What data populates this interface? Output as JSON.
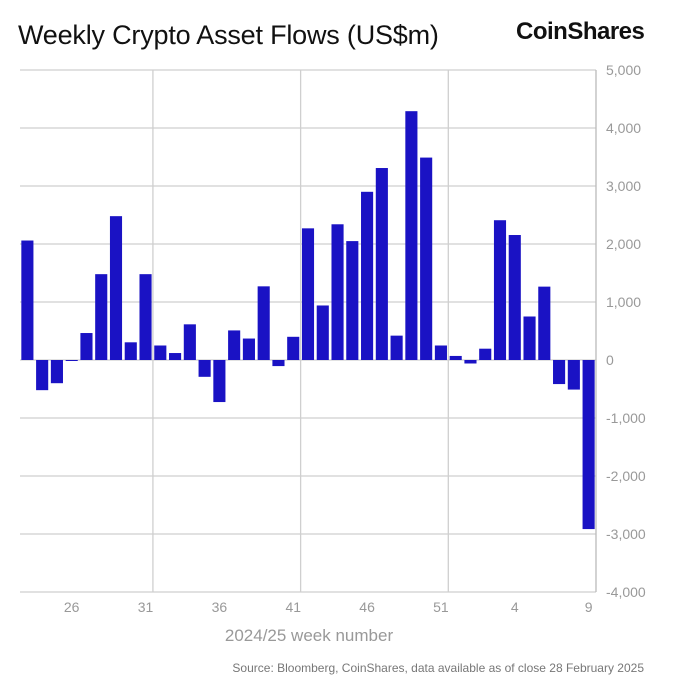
{
  "header": {
    "title": "Weekly Crypto Asset Flows (US$m)",
    "logo": "CoinShares"
  },
  "footer": {
    "source": "Source: Bloomberg, CoinShares, data available as of close 28 February 2025"
  },
  "chart_data": {
    "type": "bar",
    "title": "Weekly Crypto Asset Flows (US$m)",
    "xlabel": "2024/25 week number",
    "ylabel": "",
    "ylim": [
      -4000,
      5000
    ],
    "yticks": [
      5000,
      4000,
      3000,
      2000,
      1000,
      0,
      -1000,
      -2000,
      -3000,
      -4000
    ],
    "ytick_labels": [
      "5,000",
      "4,000",
      "3,000",
      "2,000",
      "1,000",
      "0",
      "-1,000",
      "-2,000",
      "-3,000",
      "-4,000"
    ],
    "y_axis_side": "right",
    "grid": true,
    "bar_color": "#1a12c4",
    "categories": [
      "23",
      "24",
      "25",
      "26",
      "27",
      "28",
      "29",
      "30",
      "31",
      "32",
      "33",
      "34",
      "35",
      "36",
      "37",
      "38",
      "39",
      "40",
      "41",
      "42",
      "43",
      "44",
      "45",
      "46",
      "47",
      "48",
      "49",
      "50",
      "51",
      "52",
      "1",
      "2",
      "3",
      "4",
      "5",
      "6",
      "7",
      "8",
      "9"
    ],
    "xtick_labels": [
      "26",
      "31",
      "36",
      "41",
      "46",
      "51",
      "4",
      "9"
    ],
    "values": [
      2060,
      -520,
      -400,
      -10,
      465,
      1480,
      2480,
      305,
      1480,
      250,
      120,
      615,
      -290,
      -725,
      510,
      370,
      1270,
      -105,
      400,
      2270,
      940,
      2340,
      2050,
      2900,
      3310,
      420,
      4290,
      3490,
      250,
      70,
      -60,
      195,
      2410,
      2155,
      750,
      1265,
      -415,
      -510,
      -2915
    ]
  }
}
